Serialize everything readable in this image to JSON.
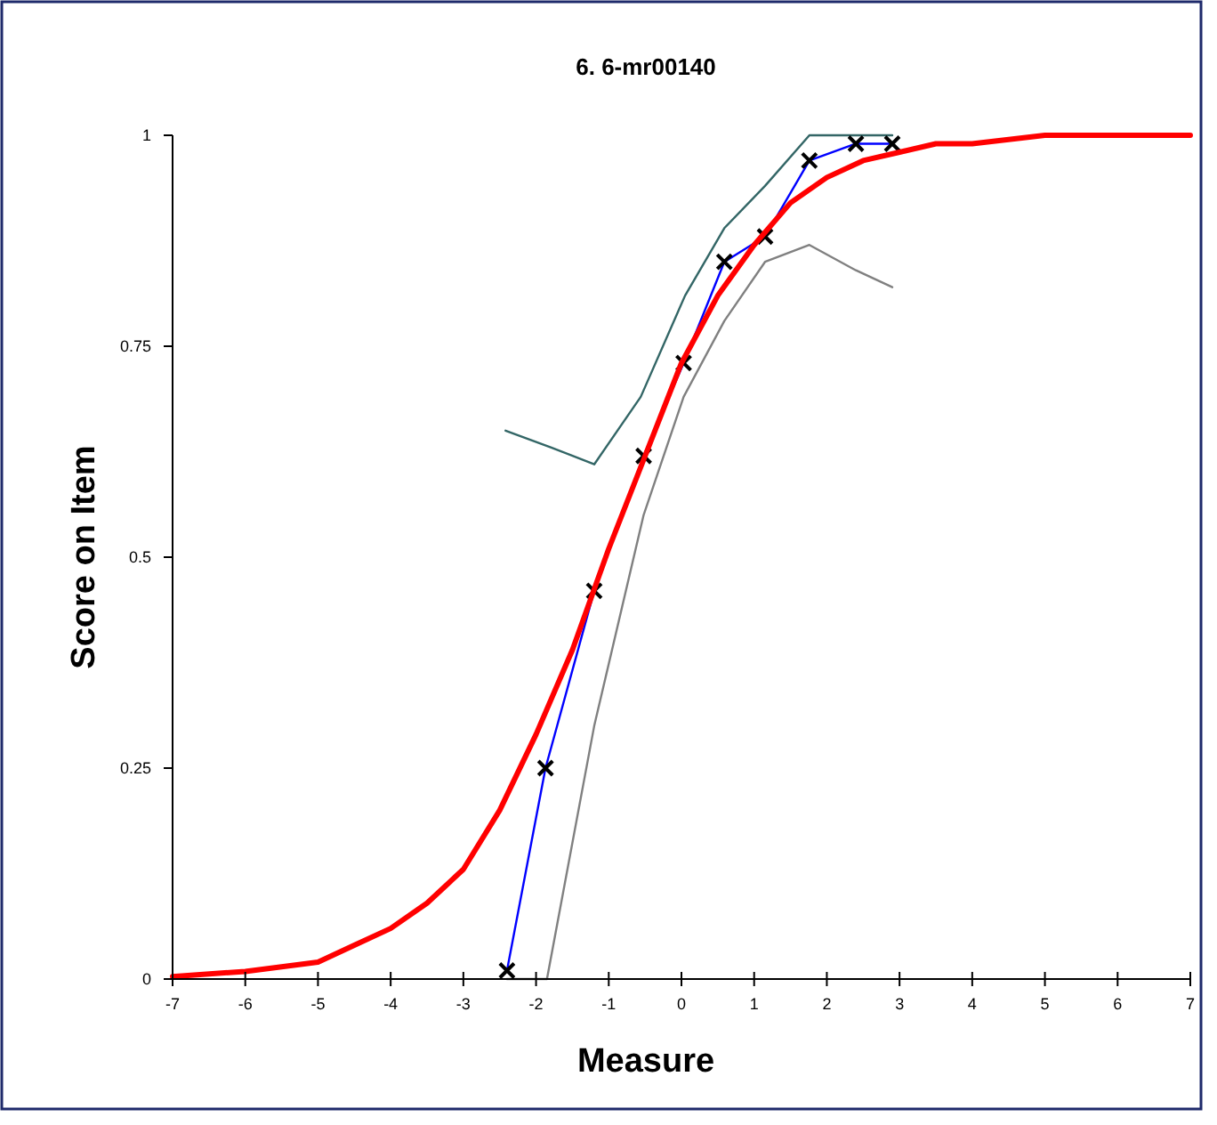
{
  "chart_data": {
    "type": "line",
    "title": "6. 6-mr00140",
    "xlabel": "Measure",
    "ylabel": "Score on Item",
    "xlim": [
      -7,
      7
    ],
    "xticks": [
      -7,
      -6,
      -5,
      -4,
      -3,
      -2,
      -1,
      0,
      1,
      2,
      3,
      4,
      5,
      6,
      7
    ],
    "ylim": [
      0,
      1
    ],
    "yticks": [
      0,
      0.25,
      0.5,
      0.75,
      1
    ],
    "grid": false,
    "series": [
      {
        "color": "#336666",
        "marker": "none",
        "x": [
          -2.42,
          -1.79,
          -1.2,
          -0.56,
          0.05,
          0.59,
          1.15,
          1.76,
          2.4,
          2.9
        ],
        "values": [
          0.65,
          0.63,
          0.61,
          0.69,
          0.81,
          0.89,
          0.94,
          1,
          1,
          1
        ]
      },
      {
        "color": "#808080",
        "marker": "none",
        "x": [
          -2.4,
          -1.85,
          -1.2,
          -0.52,
          0.03,
          0.59,
          1.15,
          1.76,
          2.4,
          2.9
        ],
        "values": [
          0,
          0,
          0.3,
          0.55,
          0.69,
          0.78,
          0.85,
          0.87,
          0.84,
          0.82
        ]
      },
      {
        "color": "#0000ff",
        "marker": "cross",
        "x": [
          -2.4,
          -1.87,
          -1.2,
          -0.52,
          0.03,
          0.59,
          1.15,
          1.76,
          2.4,
          2.9
        ],
        "values": [
          0.01,
          0.25,
          0.46,
          0.62,
          0.73,
          0.85,
          0.88,
          0.97,
          0.99,
          0.99
        ]
      },
      {
        "color": "#ff0000",
        "marker": "none",
        "x": [
          -7,
          -6,
          -5,
          -4.5,
          -4,
          -3.5,
          -3,
          -2.5,
          -2,
          -1.5,
          -1,
          -0.5,
          0,
          0.5,
          1,
          1.5,
          2,
          2.5,
          3,
          3.5,
          4,
          5,
          6,
          7
        ],
        "values": [
          0.003,
          0.009,
          0.02,
          0.04,
          0.06,
          0.09,
          0.13,
          0.2,
          0.29,
          0.39,
          0.51,
          0.62,
          0.73,
          0.81,
          0.87,
          0.92,
          0.95,
          0.97,
          0.98,
          0.99,
          0.99,
          1,
          1,
          1
        ]
      }
    ]
  }
}
